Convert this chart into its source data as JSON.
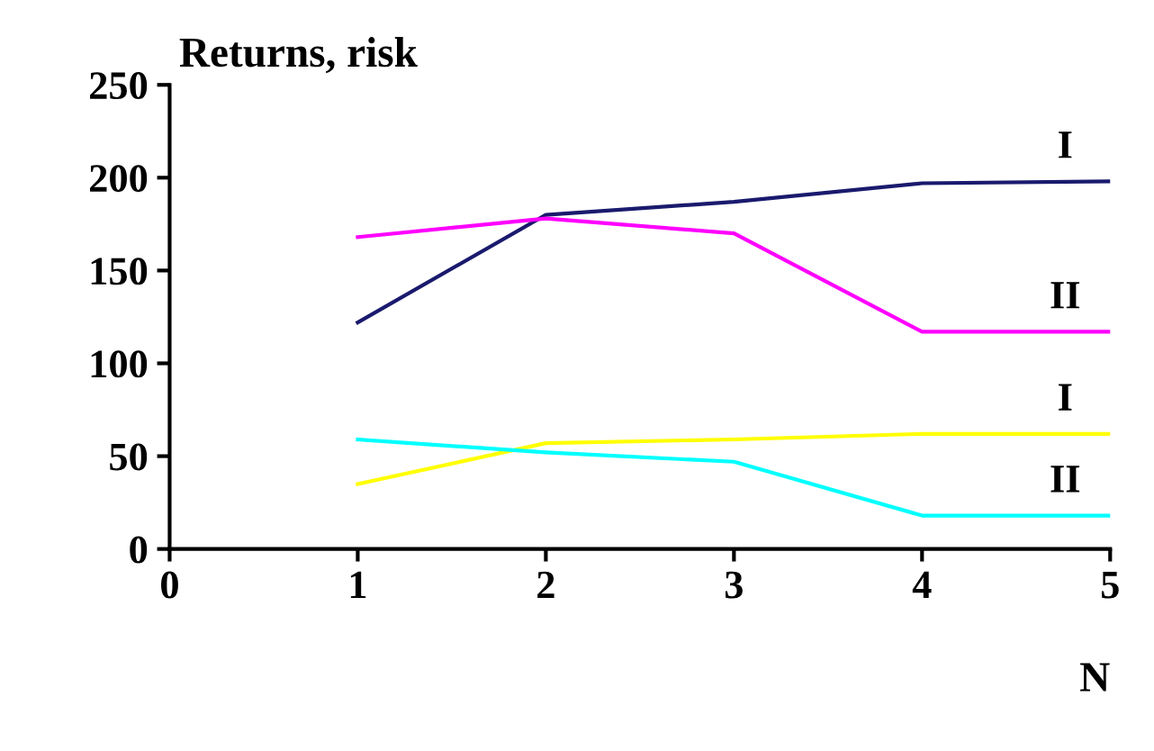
{
  "chart_data": {
    "type": "line",
    "ylabel": "Returns, risk",
    "xlabel": "N",
    "x": [
      1,
      2,
      3,
      4,
      5
    ],
    "series": [
      {
        "name": "I",
        "color": "#1a1a6e",
        "values": [
          122,
          180,
          187,
          197,
          198
        ]
      },
      {
        "name": "II",
        "color": "#ff00ff",
        "values": [
          168,
          178,
          170,
          117,
          117
        ]
      },
      {
        "name": "I",
        "color": "#ffff00",
        "values": [
          35,
          57,
          59,
          62,
          62
        ]
      },
      {
        "name": "II",
        "color": "#00ffff",
        "values": [
          59,
          52,
          47,
          18,
          18
        ]
      }
    ],
    "xlim": [
      0,
      5
    ],
    "ylim": [
      0,
      250
    ],
    "xticks": [
      0,
      1,
      2,
      3,
      4,
      5
    ],
    "yticks": [
      0,
      50,
      100,
      150,
      200,
      250
    ],
    "grid": false,
    "legend": false,
    "marker": "none",
    "line_style": "solid"
  }
}
